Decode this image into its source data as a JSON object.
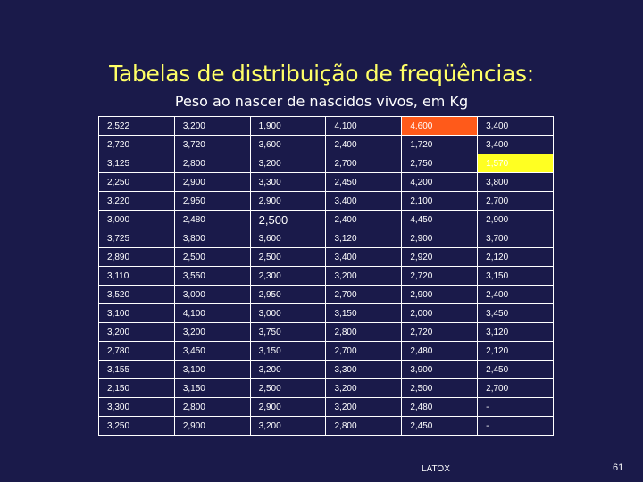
{
  "title": "Tabelas de distribuição de freqüências:",
  "subtitle": "Peso ao nascer de nascidos vivos, em Kg",
  "table": {
    "rows": [
      [
        "2,522",
        "3,200",
        "1,900",
        "4,100",
        "4,600",
        "3,400"
      ],
      [
        "2,720",
        "3,720",
        "3,600",
        "2,400",
        "1,720",
        "3,400"
      ],
      [
        "3,125",
        "2,800",
        "3,200",
        "2,700",
        "2,750",
        "1,570"
      ],
      [
        "2,250",
        "2,900",
        "3,300",
        "2,450",
        "4,200",
        "3,800"
      ],
      [
        "3,220",
        "2,950",
        "2,900",
        "3,400",
        "2,100",
        "2,700"
      ],
      [
        "3,000",
        "2,480",
        "2,500",
        "2,400",
        "4,450",
        "2,900"
      ],
      [
        "3,725",
        "3,800",
        "3,600",
        "3,120",
        "2,900",
        "3,700"
      ],
      [
        "2,890",
        "2,500",
        "2,500",
        "3,400",
        "2,920",
        "2,120"
      ],
      [
        "3,110",
        "3,550",
        "2,300",
        "3,200",
        "2,720",
        "3,150"
      ],
      [
        "3,520",
        "3,000",
        "2,950",
        "2,700",
        "2,900",
        "2,400"
      ],
      [
        "3,100",
        "4,100",
        "3,000",
        "3,150",
        "2,000",
        "3,450"
      ],
      [
        "3,200",
        "3,200",
        "3,750",
        "2,800",
        "2,720",
        "3,120"
      ],
      [
        "2,780",
        "3,450",
        "3,150",
        "2,700",
        "2,480",
        "2,120"
      ],
      [
        "3,155",
        "3,100",
        "3,200",
        "3,300",
        "3,900",
        "2,450"
      ],
      [
        "2,150",
        "3,150",
        "2,500",
        "3,200",
        "2,500",
        "2,700"
      ],
      [
        "3,300",
        "2,800",
        "2,900",
        "3,200",
        "2,480",
        "-"
      ],
      [
        "3,250",
        "2,900",
        "3,200",
        "2,800",
        "2,450",
        "-"
      ]
    ],
    "highlights": {
      "max_color": "#ff5a1a",
      "min_color": "#ffff22"
    }
  },
  "footer": "LATOX",
  "page_number": "61"
}
